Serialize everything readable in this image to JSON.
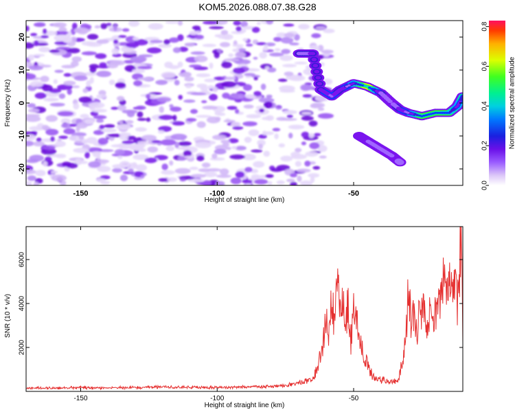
{
  "title": "KOM5.2026.088.07.38.G28",
  "colors": {
    "snr_line": "#e53030",
    "cmap": [
      "#ffffff",
      "#ddc8f8",
      "#a066ff",
      "#7a14ee",
      "#3a1ad6",
      "#0a3cff",
      "#00b4ff",
      "#00e6b4",
      "#30ff30",
      "#dcff00",
      "#ffb400",
      "#ff4000",
      "#ff1a50"
    ]
  },
  "chart_data": [
    {
      "type": "heatmap",
      "title": "",
      "xlabel": "Height of straight line (km)",
      "ylabel": "Frequency (Hz)",
      "xlim": [
        -170,
        -10
      ],
      "ylim": [
        -25,
        25
      ],
      "x_ticks": [
        -150,
        -100,
        -50
      ],
      "y_ticks": [
        -20,
        -10,
        0,
        10,
        20
      ],
      "colorbar": {
        "label": "Normalized spectral amplitude",
        "range": [
          0.0,
          0.83
        ],
        "ticks": [
          0.0,
          0.2,
          0.4,
          0.6,
          0.8
        ],
        "tick_labels": [
          "0.0",
          "0.2",
          "0.4",
          "0.6",
          "0.8"
        ]
      },
      "signal_tracks": [
        {
          "height_km": [
            -70,
            -65,
            -62,
            -58,
            -55,
            -50,
            -45,
            -40,
            -36,
            -33,
            -30,
            -25,
            -20,
            -15,
            -12,
            -10
          ],
          "frequency_hz": [
            15,
            15,
            4,
            2,
            4,
            6,
            5,
            3,
            0,
            -2,
            -3,
            -4,
            -3,
            -3,
            -1,
            2
          ],
          "amplitude": [
            0.28,
            0.3,
            0.32,
            0.36,
            0.3,
            0.45,
            0.7,
            0.28,
            0.22,
            0.32,
            0.38,
            0.62,
            0.6,
            0.55,
            0.45,
            0.5
          ]
        },
        {
          "height_km": [
            -48,
            -44,
            -40,
            -36,
            -33
          ],
          "frequency_hz": [
            -10,
            -12,
            -14,
            -16,
            -18
          ],
          "amplitude": [
            0.2,
            0.24,
            0.26,
            0.24,
            0.18
          ]
        }
      ],
      "background": {
        "height_range_km": [
          -170,
          -65
        ],
        "typical_amplitude": [
          0.02,
          0.12
        ]
      }
    },
    {
      "type": "line",
      "title": "",
      "xlabel": "Height of straight line (km)",
      "ylabel": "SNR (10 * v/v)",
      "xlim": [
        -170,
        -10
      ],
      "ylim": [
        0,
        7500
      ],
      "x_ticks": [
        -150,
        -100,
        -50
      ],
      "y_ticks": [
        2000,
        4000,
        6000
      ],
      "series": [
        {
          "x": [
            -170,
            -160,
            -150,
            -140,
            -130,
            -120,
            -110,
            -100,
            -90,
            -80,
            -75,
            -70,
            -66,
            -64,
            -62,
            -61,
            -60,
            -59,
            -58,
            -57,
            -56,
            -55,
            -54,
            -53,
            -52,
            -51,
            -50,
            -49,
            -48,
            -47,
            -46,
            -45,
            -44,
            -43,
            -42,
            -41,
            -40,
            -39,
            -38,
            -37,
            -36,
            -35,
            -34,
            -33,
            -32,
            -31,
            -30,
            -29,
            -28,
            -27,
            -26,
            -25,
            -24,
            -23,
            -22,
            -21,
            -20,
            -19,
            -18,
            -17,
            -16,
            -15,
            -14,
            -13,
            -12,
            -11,
            -10.5,
            -10
          ],
          "y": [
            150,
            160,
            170,
            160,
            180,
            200,
            180,
            180,
            200,
            220,
            260,
            380,
            500,
            850,
            1700,
            2400,
            3400,
            2700,
            4100,
            3000,
            5100,
            3600,
            4400,
            2600,
            4200,
            2300,
            3600,
            3300,
            2500,
            2100,
            1500,
            1300,
            900,
            700,
            600,
            550,
            500,
            520,
            480,
            470,
            460,
            480,
            500,
            800,
            1600,
            2200,
            4500,
            3300,
            3700,
            2600,
            3400,
            3800,
            3300,
            2900,
            3500,
            2700,
            3600,
            4300,
            4000,
            5200,
            4200,
            4800,
            4500,
            5000,
            4000,
            6000,
            7500,
            2200
          ]
        }
      ]
    }
  ]
}
